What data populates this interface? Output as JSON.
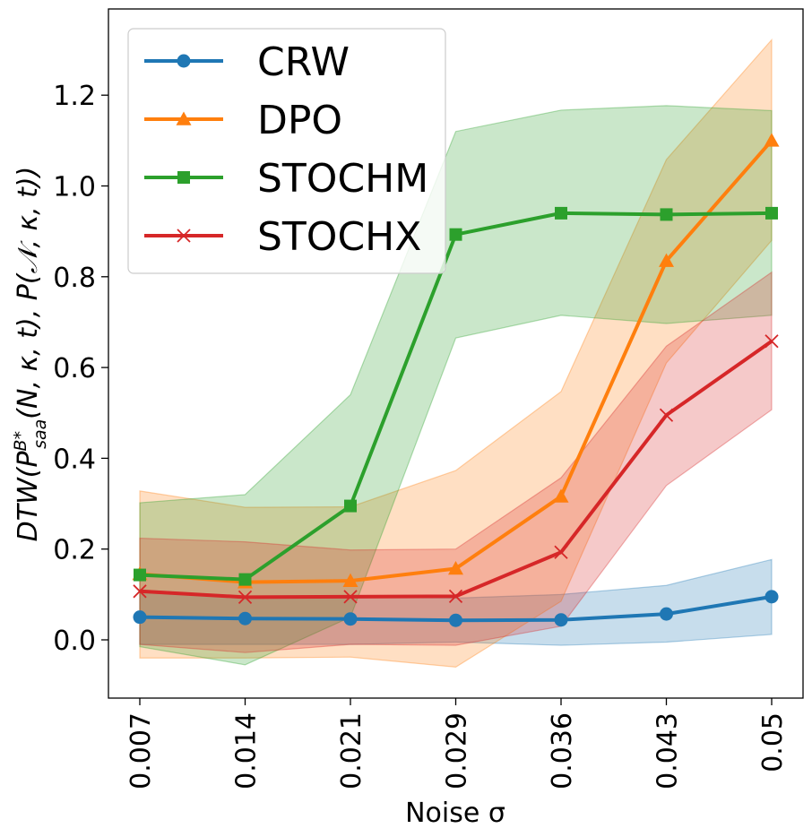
{
  "chart_data": {
    "type": "line",
    "xlabel": "Noise σ",
    "ylabel_parts": {
      "a": "DTW(P",
      "sup": "B*",
      "sub": "saa",
      "b": "(N, κ, t), P(𝒩, κ, t))"
    },
    "categories": [
      "0.007",
      "0.014",
      "0.021",
      "0.029",
      "0.036",
      "0.043",
      "0.05"
    ],
    "ylim": [
      -0.13,
      1.39
    ],
    "yticks": [
      "0.0",
      "0.2",
      "0.4",
      "0.6",
      "0.8",
      "1.0",
      "1.2"
    ],
    "ytick_values": [
      0.0,
      0.2,
      0.4,
      0.6,
      0.8,
      1.0,
      1.2
    ],
    "legend_position": "top-left",
    "grid": false,
    "series": [
      {
        "name": "CRW",
        "color": "#1f77b4",
        "marker": "circle",
        "values": [
          0.05,
          0.047,
          0.046,
          0.043,
          0.044,
          0.057,
          0.095
        ],
        "lower": [
          -0.01,
          -0.01,
          -0.01,
          -0.005,
          -0.012,
          -0.005,
          0.012
        ],
        "upper": [
          0.11,
          0.095,
          0.095,
          0.092,
          0.1,
          0.12,
          0.177
        ]
      },
      {
        "name": "DPO",
        "color": "#ff7f0e",
        "marker": "triangle",
        "values": [
          0.145,
          0.127,
          0.13,
          0.157,
          0.316,
          0.835,
          1.1
        ],
        "lower": [
          -0.04,
          -0.04,
          -0.038,
          -0.06,
          0.085,
          0.61,
          0.88
        ],
        "upper": [
          0.328,
          0.292,
          0.293,
          0.373,
          0.547,
          1.058,
          1.322
        ]
      },
      {
        "name": "STOCHM",
        "color": "#2ca02c",
        "marker": "square",
        "values": [
          0.143,
          0.133,
          0.295,
          0.893,
          0.94,
          0.937,
          0.94
        ],
        "lower": [
          -0.015,
          -0.055,
          0.05,
          0.665,
          0.715,
          0.697,
          0.715
        ],
        "upper": [
          0.302,
          0.32,
          0.54,
          1.12,
          1.167,
          1.177,
          1.166
        ]
      },
      {
        "name": "STOCHX",
        "color": "#d62728",
        "marker": "x",
        "values": [
          0.107,
          0.094,
          0.095,
          0.096,
          0.193,
          0.495,
          0.658
        ],
        "lower": [
          -0.01,
          -0.028,
          -0.01,
          -0.012,
          0.03,
          0.34,
          0.507
        ],
        "upper": [
          0.224,
          0.216,
          0.198,
          0.2,
          0.357,
          0.647,
          0.81
        ]
      }
    ]
  }
}
